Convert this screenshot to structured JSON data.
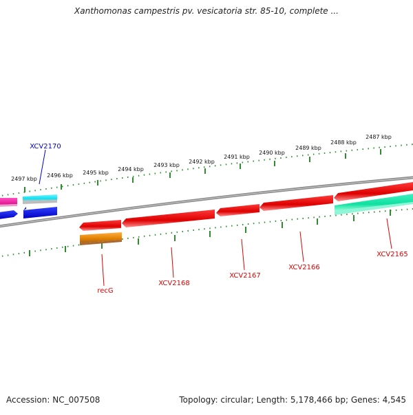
{
  "title": "Xanthomonas campestris pv. vesicatoria str. 85-10, complete ...",
  "footer": {
    "accession": "Accession: NC_007508",
    "summary": "Topology: circular; Length: 5,178,466 bp; Genes: 4,545"
  },
  "colors": {
    "backbone": "#8a8a8a",
    "tick": "#2e8b2e",
    "gene_label_pos": "#0000cc",
    "gene_label_neg": "#dd0000",
    "gene_red": "#ee1111",
    "gene_orange": "#f08c00",
    "gene_blue": "#0010dd",
    "gene_cyan": "#11e0f0",
    "gene_green": "#11e8a8",
    "gene_pink": "#ff2aa8"
  },
  "outer_ruler_labels": [
    "2497 kbp",
    "2496 kbp",
    "2495 kbp",
    "2494 kbp",
    "2493 kbp",
    "2492 kbp",
    "2491 kbp",
    "2490 kbp",
    "2489 kbp",
    "2488 kbp",
    "2487 kbp"
  ],
  "gene_labels": {
    "xcv2170": "XCV2170",
    "recg": "recG",
    "xcv2168": "XCV2168",
    "xcv2167": "XCV2167",
    "xcv2166": "XCV2166",
    "xcv2165": "XCV2165"
  }
}
